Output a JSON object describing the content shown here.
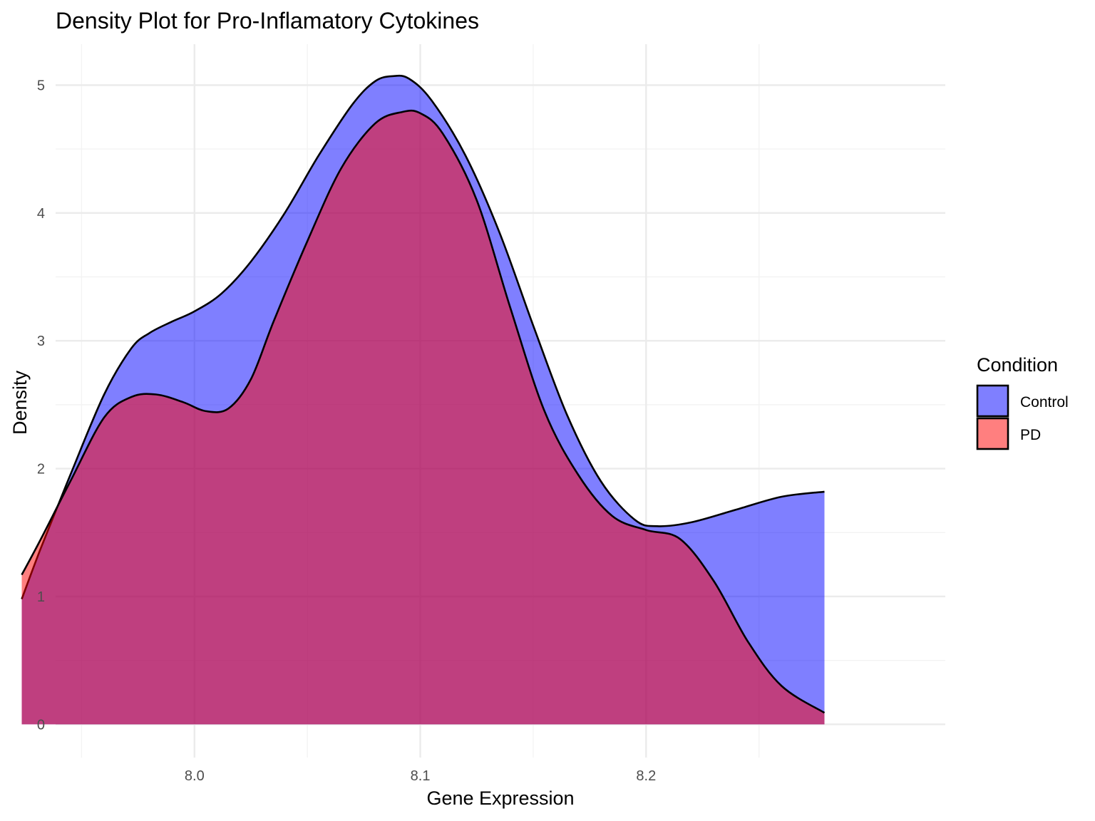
{
  "chart_data": {
    "type": "area",
    "title": "Density Plot for Pro-Inflamatory  Cytokines",
    "xlabel": "Gene Expression",
    "ylabel": "Density",
    "xlim": [
      7.9385,
      8.3325
    ],
    "ylim": [
      -0.26,
      5.32
    ],
    "x_ticks": [
      8.0,
      8.1,
      8.2
    ],
    "x_tick_labels": [
      "8.0",
      "8.1",
      "8.2"
    ],
    "x_minor_ticks": [
      7.95,
      8.05,
      8.15,
      8.25
    ],
    "y_ticks": [
      0,
      1,
      2,
      3,
      4,
      5
    ],
    "y_tick_labels": [
      "0",
      "1",
      "2",
      "3",
      "4",
      "5"
    ],
    "y_minor_ticks": [
      0.5,
      1.5,
      2.5,
      3.5,
      4.5
    ],
    "grid": true,
    "legend": {
      "title": "Condition",
      "position": "right",
      "entries": [
        {
          "name": "Control",
          "color": "#0000FF"
        },
        {
          "name": "PD",
          "color": "#FF0000"
        }
      ]
    },
    "fill_alpha": 0.5,
    "series": [
      {
        "name": "Control",
        "color": "#0000FF",
        "x": [
          7.9235,
          7.932,
          7.945,
          7.96,
          7.972,
          7.98,
          7.99,
          8.0,
          8.012,
          8.025,
          8.04,
          8.055,
          8.07,
          8.08,
          8.088,
          8.095,
          8.105,
          8.12,
          8.135,
          8.15,
          8.165,
          8.18,
          8.195,
          8.205,
          8.22,
          8.24,
          8.26,
          8.279
        ],
        "y": [
          0.98,
          1.38,
          1.95,
          2.58,
          2.94,
          3.06,
          3.15,
          3.23,
          3.37,
          3.62,
          4.0,
          4.45,
          4.85,
          5.03,
          5.07,
          5.05,
          4.88,
          4.45,
          3.85,
          3.12,
          2.42,
          1.9,
          1.6,
          1.55,
          1.58,
          1.68,
          1.78,
          1.82
        ]
      },
      {
        "name": "PD",
        "color": "#FF0000",
        "x": [
          7.9235,
          7.932,
          7.945,
          7.96,
          7.972,
          7.983,
          7.995,
          8.005,
          8.015,
          8.025,
          8.035,
          8.05,
          8.065,
          8.08,
          8.092,
          8.1,
          8.11,
          8.125,
          8.14,
          8.155,
          8.17,
          8.185,
          8.2,
          8.215,
          8.23,
          8.245,
          8.26,
          8.279
        ],
        "y": [
          1.17,
          1.45,
          1.9,
          2.4,
          2.56,
          2.58,
          2.52,
          2.45,
          2.47,
          2.7,
          3.15,
          3.78,
          4.35,
          4.7,
          4.79,
          4.78,
          4.62,
          4.1,
          3.25,
          2.45,
          1.95,
          1.63,
          1.52,
          1.45,
          1.12,
          0.65,
          0.3,
          0.09
        ]
      }
    ]
  }
}
